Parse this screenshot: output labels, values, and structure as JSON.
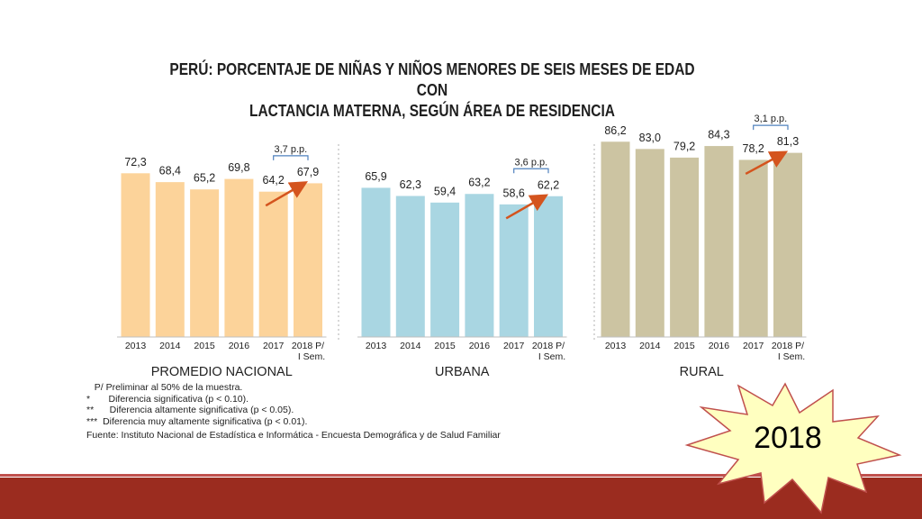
{
  "title": {
    "line1": "PERÚ: PORCENTAJE DE NIÑAS Y NIÑOS MENORES DE SEIS MESES DE EDAD CON",
    "line2": "LACTANCIA MATERNA, SEGÚN ÁREA DE RESIDENCIA"
  },
  "chart_data": {
    "type": "bar",
    "ylim": [
      0,
      100
    ],
    "groups": [
      {
        "name": "PROMEDIO NACIONAL",
        "color": "#fcd39a",
        "categories": [
          "2013",
          "2014",
          "2015",
          "2016",
          "2017",
          "2018 P/\nI Sem."
        ],
        "values": [
          72.3,
          68.4,
          65.2,
          69.8,
          64.2,
          67.9
        ],
        "labels": [
          "72,3",
          "68,4",
          "65,2",
          "69,8",
          "64,2",
          "67,9"
        ],
        "change": "3,7 p.p."
      },
      {
        "name": "URBANA",
        "color": "#a9d6e2",
        "categories": [
          "2013",
          "2014",
          "2015",
          "2016",
          "2017",
          "2018 P/\nI Sem."
        ],
        "values": [
          65.9,
          62.3,
          59.4,
          63.2,
          58.6,
          62.2
        ],
        "labels": [
          "65,9",
          "62,3",
          "59,4",
          "63,2",
          "58,6",
          "62,2"
        ],
        "change": "3,6 p.p."
      },
      {
        "name": "RURAL",
        "color": "#ccc4a2",
        "categories": [
          "2013",
          "2014",
          "2015",
          "2016",
          "2017",
          "2018 P/\nI Sem."
        ],
        "values": [
          86.2,
          83.0,
          79.2,
          84.3,
          78.2,
          81.3
        ],
        "labels": [
          "86,2",
          "83,0",
          "79,2",
          "84,3",
          "78,2",
          "81,3"
        ],
        "change": "3,1 p.p."
      }
    ]
  },
  "notes": [
    "   P/ Preliminar al 50% de la muestra.",
    "*       Diferencia significativa (p < 0.10).",
    "**      Diferencia altamente significativa (p < 0.05).",
    "***  Diferencia muy altamente significativa (p < 0.01)."
  ],
  "source": "Fuente: Instituto Nacional de Estadística e Informática - Encuesta Demográfica y de Salud Familiar",
  "badge": {
    "label": "2018",
    "color": "#ffffc0",
    "stroke": "#c0504d"
  },
  "colors": {
    "arrow": "#d4541e",
    "bracket": "#4f81bd",
    "bottom_bar": "#9b2c1f"
  }
}
